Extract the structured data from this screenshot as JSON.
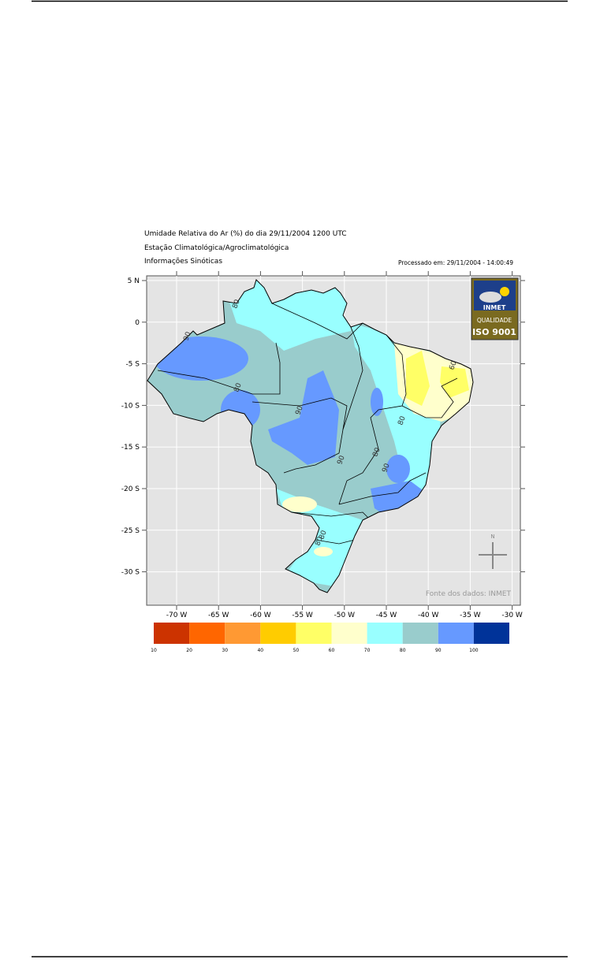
{
  "map": {
    "title_lines": [
      "Umidade Relativa do Ar (%) do dia 29/11/2004 1200 UTC",
      "Estação Climatológica/Agroclimatológica",
      "Informações Sinóticas"
    ],
    "processed": "Processado em: 29/11/2004 - 14:00:49",
    "lat_ticks": [
      "5 N",
      "0",
      "-5 S",
      "-10 S",
      "-15 S",
      "-20 S",
      "-25 S",
      "-30 S"
    ],
    "lon_ticks": [
      "-70 W",
      "-65 W",
      "-60 W",
      "-55 W",
      "-50 W",
      "-45 W",
      "-40 W",
      "-35 W",
      "-30 W"
    ],
    "contour_labels": [
      "80",
      "80",
      "90",
      "90",
      "80",
      "80",
      "90",
      "80",
      "90",
      "80",
      "60"
    ],
    "logo": {
      "name": "INMET",
      "line1": "QUALIDADE",
      "line2": "ISO 9001"
    },
    "compass": "N",
    "source": "Fonte dos dados: INMET",
    "legend": {
      "colors": [
        "#cc3300",
        "#ff6600",
        "#ff9933",
        "#ffcc00",
        "#ffff66",
        "#ffffcc",
        "#99ffff",
        "#99cccc",
        "#6699ff",
        "#003399"
      ],
      "labels": [
        "10",
        "20",
        "30",
        "40",
        "50",
        "60",
        "70",
        "80",
        "90",
        "100"
      ]
    }
  }
}
